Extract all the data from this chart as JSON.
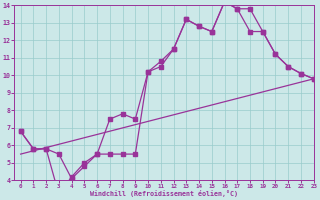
{
  "bg_color": "#cce8e8",
  "line_color": "#993399",
  "grid_color": "#99cccc",
  "line1_x": [
    0,
    1,
    2,
    3,
    4,
    5,
    6,
    7,
    8,
    9,
    10,
    11,
    12,
    13,
    14,
    15,
    16,
    17,
    18,
    19,
    20,
    21,
    22,
    23
  ],
  "line1_y": [
    6.8,
    5.8,
    5.8,
    5.5,
    4.1,
    4.8,
    5.5,
    7.5,
    7.8,
    7.5,
    10.2,
    10.5,
    11.5,
    13.2,
    12.8,
    12.5,
    14.2,
    13.8,
    13.8,
    12.5,
    11.2,
    10.5,
    10.1,
    9.8
  ],
  "line2_x": [
    0,
    1,
    2,
    3,
    4,
    5,
    6,
    7,
    8,
    9,
    10,
    11,
    12,
    13,
    14,
    15,
    16,
    17,
    18,
    19,
    20,
    21,
    22,
    23
  ],
  "line2_y": [
    6.8,
    5.8,
    5.8,
    3.2,
    4.2,
    5.0,
    5.5,
    5.5,
    5.5,
    5.5,
    10.2,
    10.8,
    11.5,
    13.2,
    12.8,
    12.5,
    14.2,
    13.8,
    12.5,
    12.5,
    11.2,
    10.5,
    10.1,
    9.8
  ],
  "line3_x": [
    0,
    23
  ],
  "line3_y": [
    5.5,
    9.8
  ],
  "xlabel": "Windchill (Refroidissement éolien,°C)",
  "xlim": [
    -0.5,
    23
  ],
  "ylim": [
    4,
    14
  ],
  "yticks": [
    4,
    5,
    6,
    7,
    8,
    9,
    10,
    11,
    12,
    13,
    14
  ],
  "xticks": [
    0,
    1,
    2,
    3,
    4,
    5,
    6,
    7,
    8,
    9,
    10,
    11,
    12,
    13,
    14,
    15,
    16,
    17,
    18,
    19,
    20,
    21,
    22,
    23
  ]
}
